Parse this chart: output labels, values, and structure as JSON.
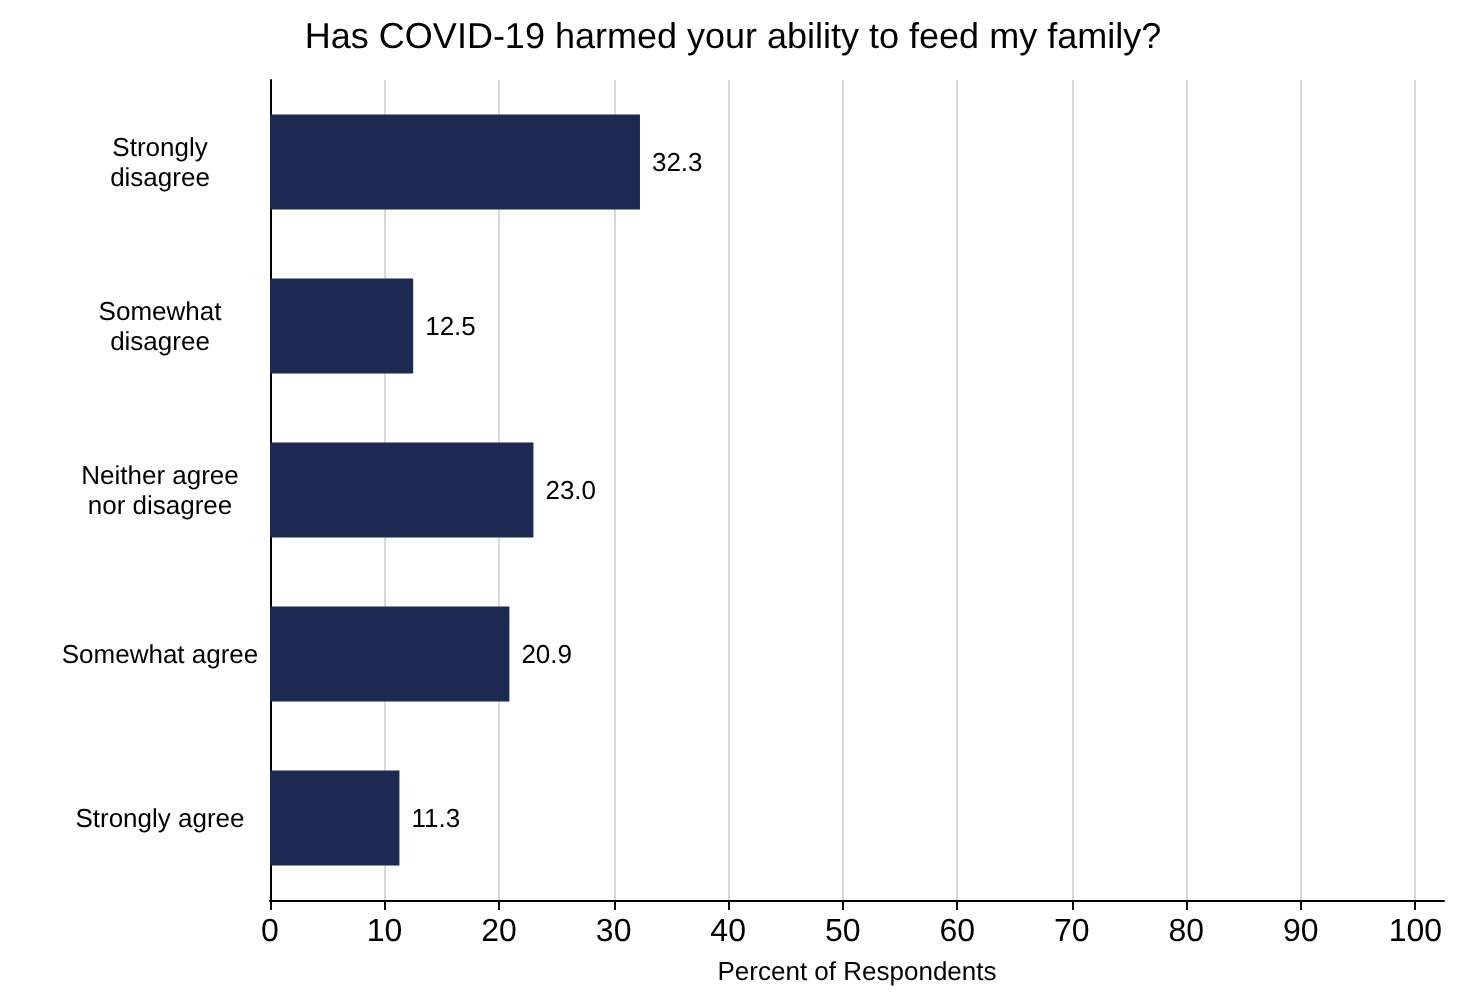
{
  "chart_data": {
    "type": "bar",
    "orientation": "horizontal",
    "title": "Has COVID-19 harmed your ability to feed my family?",
    "xlabel": "Percent of Respondents",
    "categories": [
      "Strongly\ndisagree",
      "Somewhat\ndisagree",
      "Neither agree\nnor disagree",
      "Somewhat agree",
      "Strongly agree"
    ],
    "values": [
      32.3,
      12.5,
      23.0,
      20.9,
      11.3
    ],
    "value_labels": [
      "32.3",
      "12.5",
      "23.0",
      "20.9",
      "11.3"
    ],
    "color": "#1c2951",
    "xlim": [
      0,
      102.5
    ],
    "xticks": [
      0,
      10,
      20,
      30,
      40,
      50,
      60,
      70,
      80,
      90,
      100
    ],
    "grid": "x"
  }
}
